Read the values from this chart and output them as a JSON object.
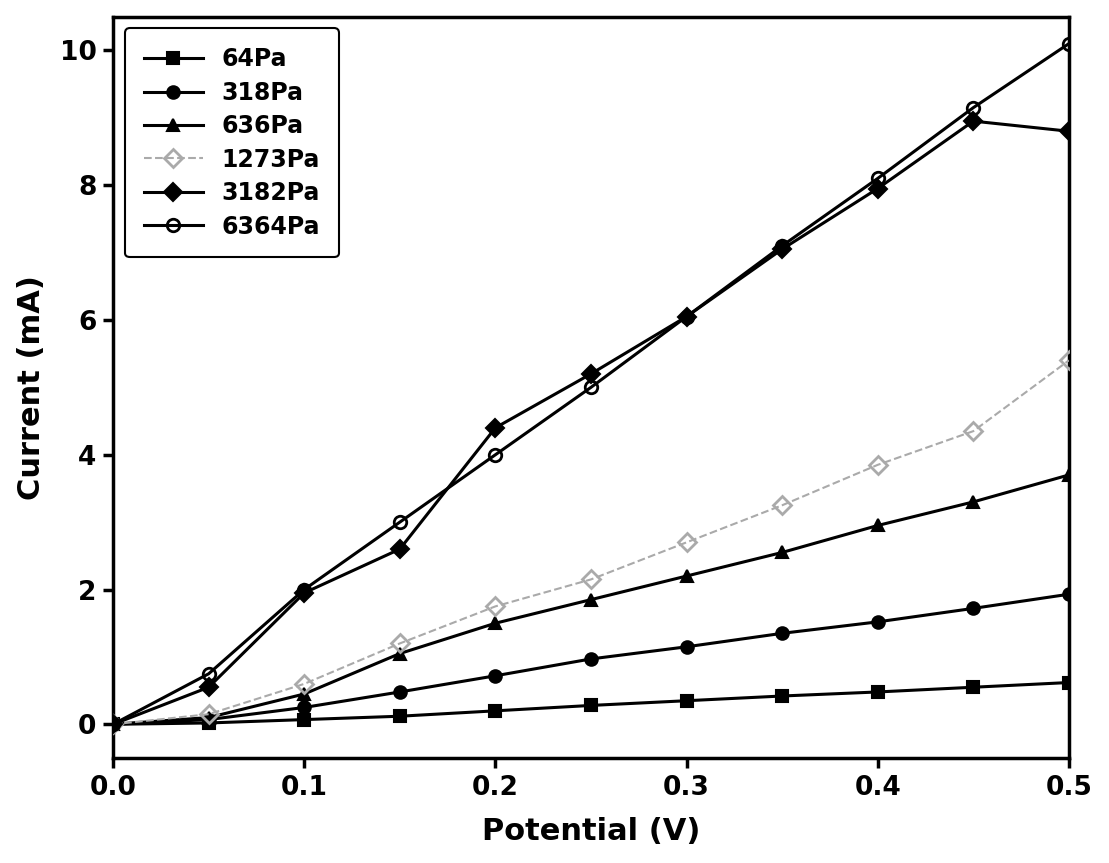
{
  "title": "",
  "xlabel": "Potential (V)",
  "ylabel": "Current (mA)",
  "xlim": [
    0.0,
    0.5
  ],
  "ylim": [
    -0.5,
    10.5
  ],
  "background_color": "#ffffff",
  "series": [
    {
      "label": "64Pa",
      "color": "#000000",
      "linewidth": 2.2,
      "linestyle": "-",
      "marker": "s",
      "markersize": 9,
      "open": false,
      "gray": false,
      "x": [
        0.0,
        0.05,
        0.1,
        0.15,
        0.2,
        0.25,
        0.3,
        0.35,
        0.4,
        0.45,
        0.5
      ],
      "y": [
        0.0,
        0.02,
        0.07,
        0.12,
        0.2,
        0.28,
        0.35,
        0.42,
        0.48,
        0.55,
        0.62
      ]
    },
    {
      "label": "318Pa",
      "color": "#000000",
      "linewidth": 2.2,
      "linestyle": "-",
      "marker": "o",
      "markersize": 9,
      "open": false,
      "gray": false,
      "x": [
        0.0,
        0.05,
        0.1,
        0.15,
        0.2,
        0.25,
        0.3,
        0.35,
        0.4,
        0.45,
        0.5
      ],
      "y": [
        0.0,
        0.07,
        0.25,
        0.48,
        0.72,
        0.97,
        1.15,
        1.35,
        1.52,
        1.72,
        1.93
      ]
    },
    {
      "label": "636Pa",
      "color": "#000000",
      "linewidth": 2.2,
      "linestyle": "-",
      "marker": "^",
      "markersize": 9,
      "open": false,
      "gray": false,
      "x": [
        0.0,
        0.05,
        0.1,
        0.15,
        0.2,
        0.25,
        0.3,
        0.35,
        0.4,
        0.45,
        0.5
      ],
      "y": [
        0.0,
        0.1,
        0.45,
        1.05,
        1.5,
        1.85,
        2.2,
        2.55,
        2.95,
        3.3,
        3.7
      ]
    },
    {
      "label": "1273Pa",
      "color": "#aaaaaa",
      "linewidth": 1.5,
      "linestyle": "--",
      "marker": "D",
      "markersize": 9,
      "open": true,
      "gray": true,
      "x": [
        0.0,
        0.05,
        0.1,
        0.15,
        0.2,
        0.25,
        0.3,
        0.35,
        0.4,
        0.45,
        0.5
      ],
      "y": [
        0.0,
        0.15,
        0.6,
        1.2,
        1.75,
        2.15,
        2.7,
        3.25,
        3.85,
        4.35,
        5.4
      ]
    },
    {
      "label": "3182Pa",
      "color": "#000000",
      "linewidth": 2.2,
      "linestyle": "-",
      "marker": "D",
      "markersize": 9,
      "open": false,
      "gray": false,
      "x": [
        0.0,
        0.05,
        0.1,
        0.15,
        0.2,
        0.25,
        0.3,
        0.35,
        0.4,
        0.45,
        0.5
      ],
      "y": [
        0.0,
        0.55,
        1.95,
        2.6,
        4.4,
        5.2,
        6.05,
        7.05,
        7.95,
        8.95,
        8.8
      ]
    },
    {
      "label": "6364Pa",
      "color": "#000000",
      "linewidth": 2.2,
      "linestyle": "-",
      "marker": "o",
      "markersize": 9,
      "open": true,
      "gray": false,
      "x": [
        0.0,
        0.05,
        0.1,
        0.15,
        0.2,
        0.25,
        0.3,
        0.35,
        0.4,
        0.45,
        0.5
      ],
      "y": [
        0.0,
        0.75,
        2.0,
        3.0,
        4.0,
        5.0,
        6.05,
        7.1,
        8.1,
        9.15,
        10.1
      ]
    }
  ],
  "xticks": [
    0.0,
    0.1,
    0.2,
    0.3,
    0.4,
    0.5
  ],
  "yticks": [
    0,
    2,
    4,
    6,
    8,
    10
  ],
  "legend_loc": "upper left",
  "legend_fontsize": 17,
  "axis_label_fontsize": 22,
  "tick_fontsize": 19
}
